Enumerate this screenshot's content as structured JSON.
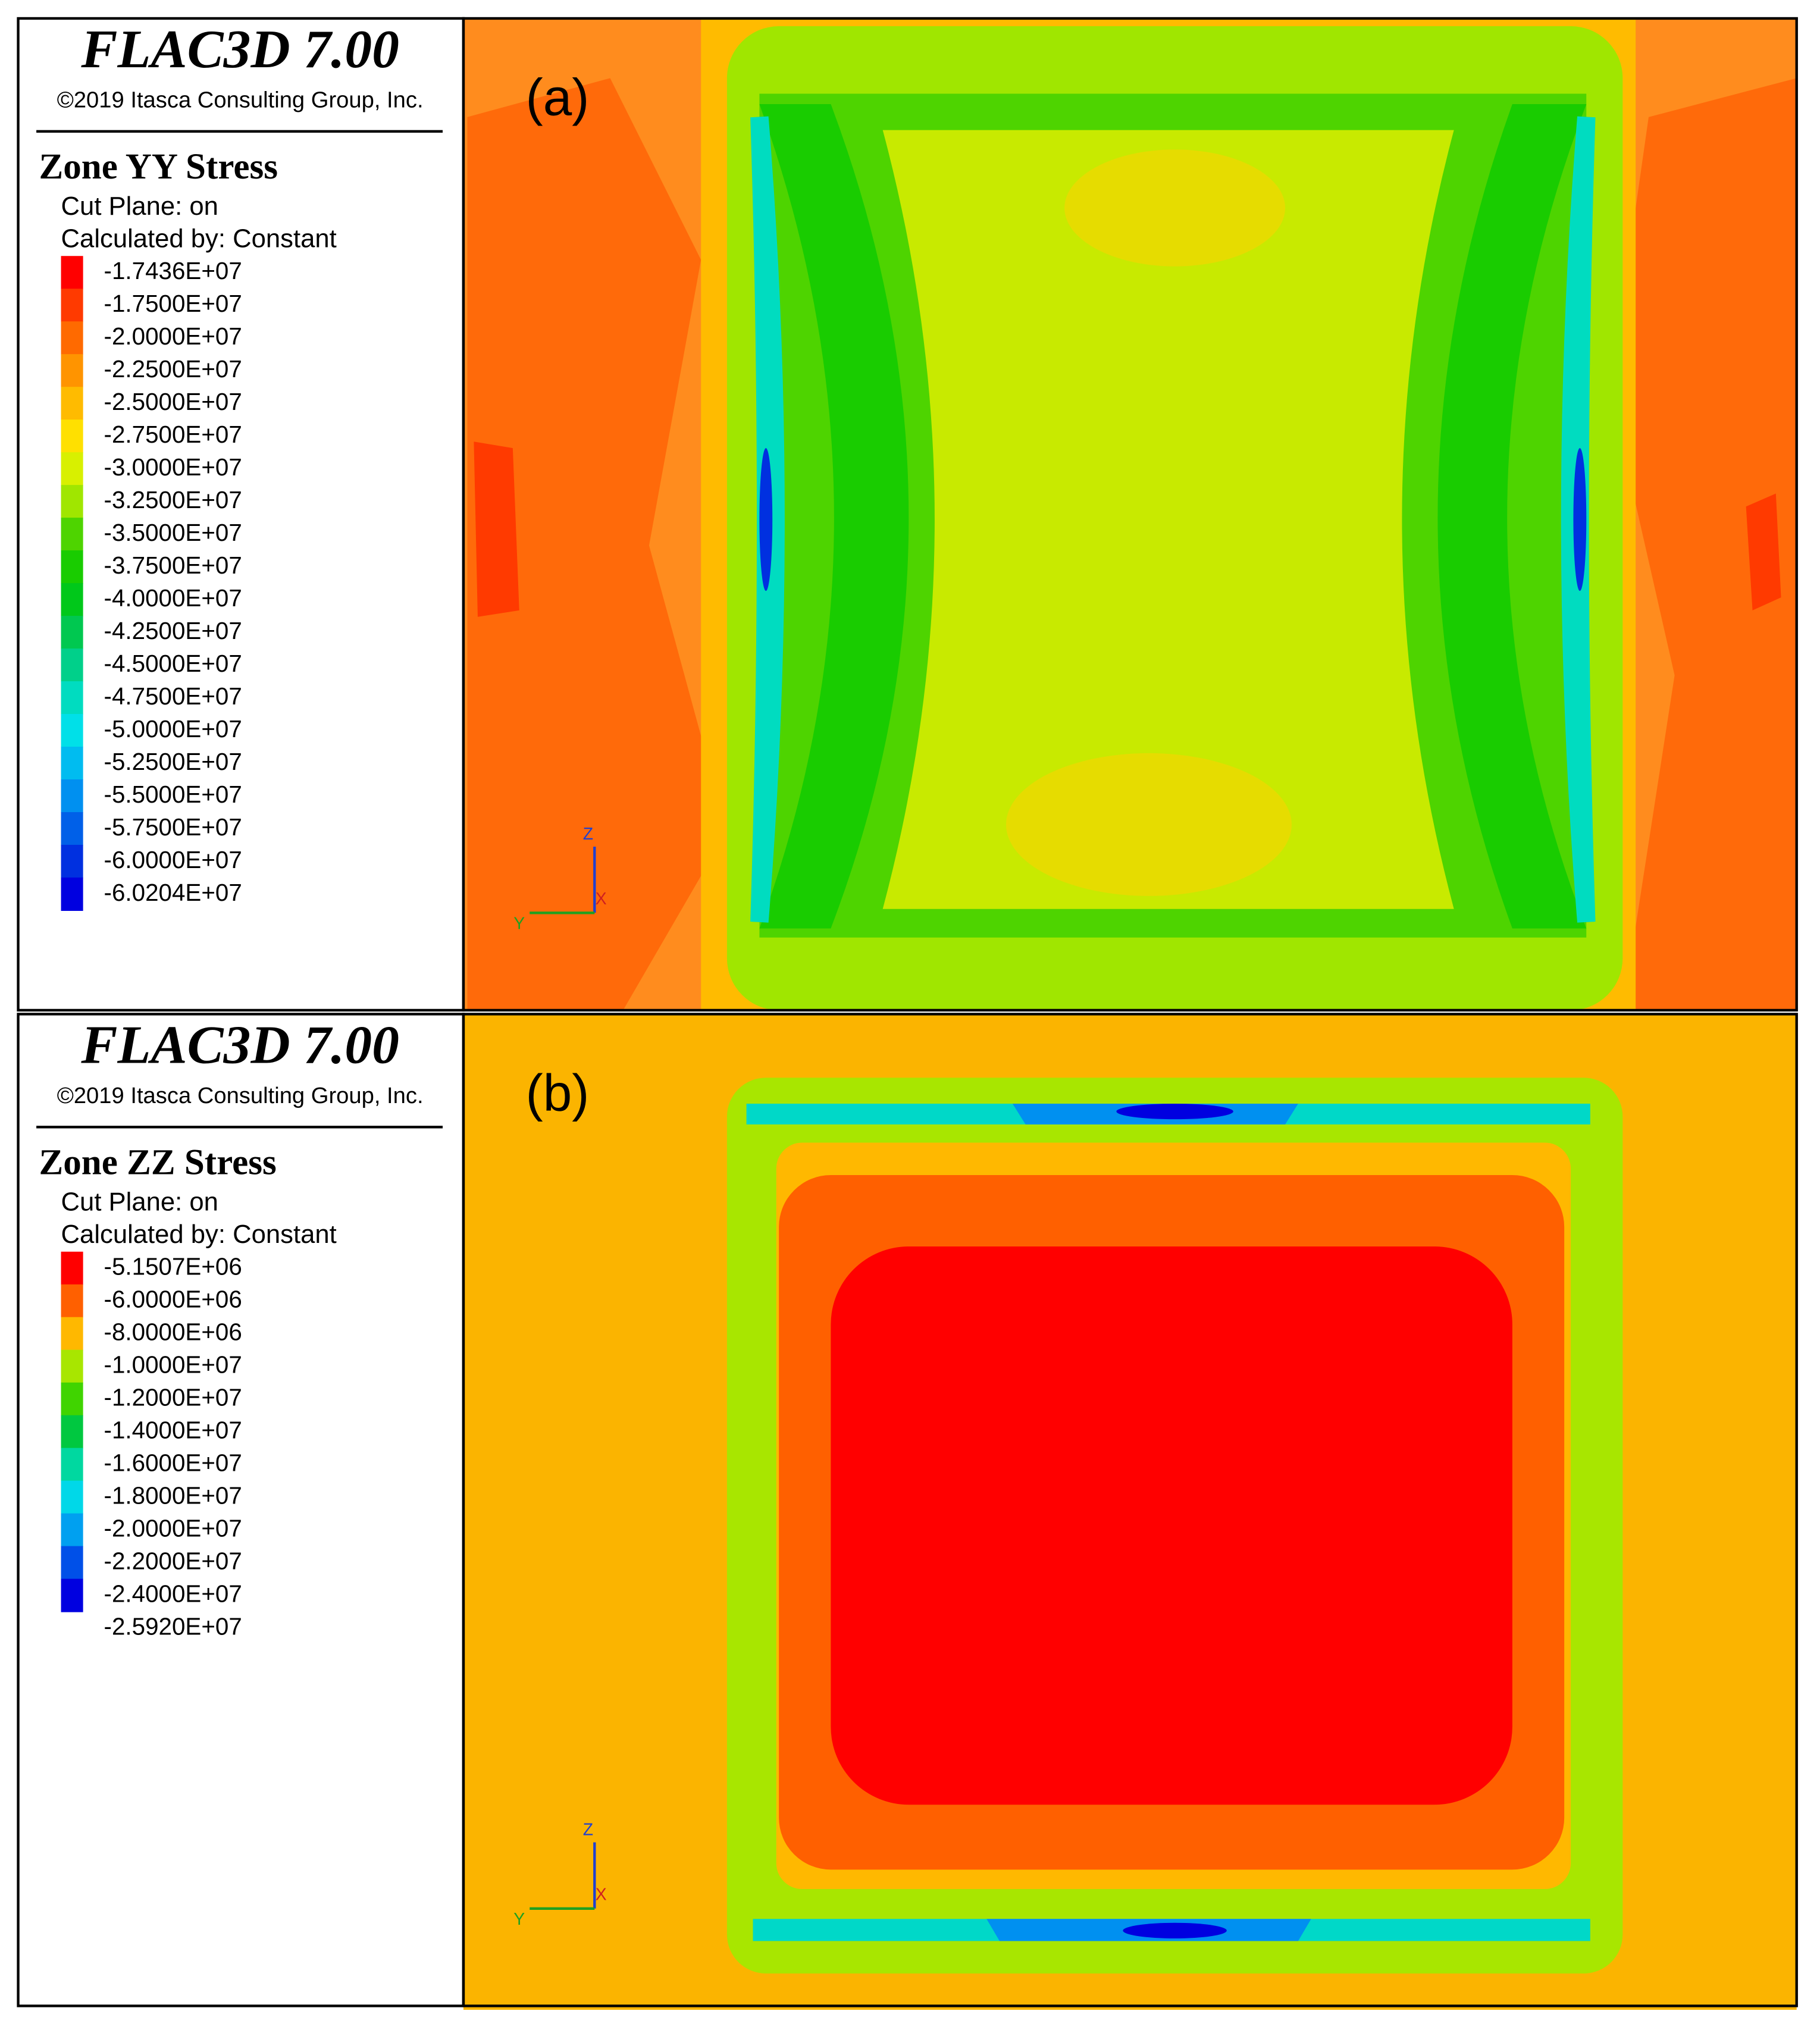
{
  "panels": [
    {
      "header": {
        "title": "FLAC3D 7.00",
        "copyright": "©2019 Itasca Consulting Group, Inc."
      },
      "legend": {
        "title": "Zone YY Stress",
        "cut_plane": "Cut Plane: on",
        "calculated_by": "Calculated by: Constant",
        "labels": [
          "-1.7436E+07",
          "-1.7500E+07",
          "-2.0000E+07",
          "-2.2500E+07",
          "-2.5000E+07",
          "-2.7500E+07",
          "-3.0000E+07",
          "-3.2500E+07",
          "-3.5000E+07",
          "-3.7500E+07",
          "-4.0000E+07",
          "-4.2500E+07",
          "-4.5000E+07",
          "-4.7500E+07",
          "-5.0000E+07",
          "-5.2500E+07",
          "-5.5000E+07",
          "-5.7500E+07",
          "-6.0000E+07",
          "-6.0204E+07"
        ],
        "colors": [
          "#ff0000",
          "#ff3a00",
          "#ff6a00",
          "#ff9400",
          "#ffbb00",
          "#ffe000",
          "#d8f000",
          "#a0e600",
          "#4ed400",
          "#19cc00",
          "#00c81a",
          "#00c850",
          "#00d08a",
          "#00dcc0",
          "#00e0e8",
          "#00bcf0",
          "#0090f0",
          "#0060e8",
          "#0030e0",
          "#0000e0"
        ]
      },
      "plot": {
        "label": "(a)",
        "axes": {
          "z": "Z",
          "y": "Y",
          "x": "X"
        }
      }
    },
    {
      "header": {
        "title": "FLAC3D 7.00",
        "copyright": "©2019 Itasca Consulting Group, Inc."
      },
      "legend": {
        "title": "Zone ZZ Stress",
        "cut_plane": "Cut Plane: on",
        "calculated_by": "Calculated by: Constant",
        "labels": [
          "-5.1507E+06",
          "-6.0000E+06",
          "-8.0000E+06",
          "-1.0000E+07",
          "-1.2000E+07",
          "-1.4000E+07",
          "-1.6000E+07",
          "-1.8000E+07",
          "-2.0000E+07",
          "-2.2000E+07",
          "-2.4000E+07",
          "-2.5920E+07"
        ],
        "colors": [
          "#ff0000",
          "#ff6000",
          "#ffb800",
          "#a8e600",
          "#40d400",
          "#00c840",
          "#00d8a0",
          "#00d8e8",
          "#00a0f0",
          "#0050e8",
          "#0000e0"
        ]
      },
      "plot": {
        "label": "(b)",
        "axes": {
          "z": "Z",
          "y": "Y",
          "x": "X"
        }
      }
    }
  ]
}
